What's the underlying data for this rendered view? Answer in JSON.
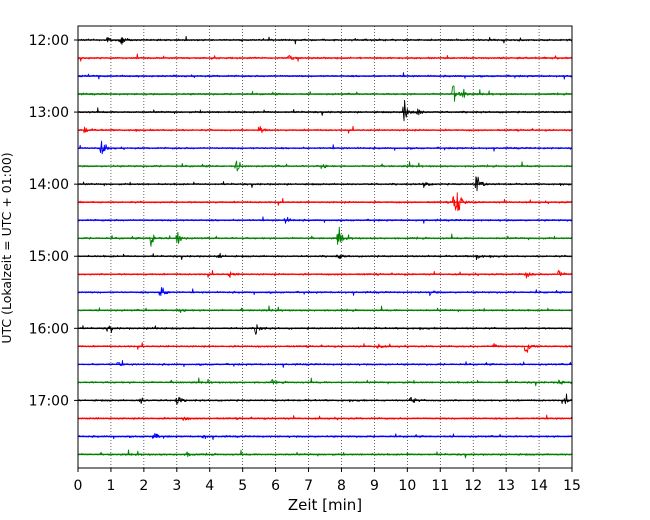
{
  "chart_data": {
    "type": "line",
    "title": "",
    "xlabel": "Zeit  [min]",
    "ylabel": "UTC (Lokalzeit = UTC + 01:00)",
    "xlim": [
      0,
      15
    ],
    "x_ticks": [
      "0",
      "1",
      "2",
      "3",
      "4",
      "5",
      "6",
      "7",
      "8",
      "9",
      "10",
      "11",
      "12",
      "13",
      "14",
      "15"
    ],
    "y_tick_labels": [
      "12:00",
      "13:00",
      "14:00",
      "15:00",
      "16:00",
      "17:00"
    ],
    "y_tick_rows": [
      0,
      4,
      8,
      12,
      16,
      20
    ],
    "grid": "vertical dotted",
    "trace_colors": [
      "#000000",
      "#ff0000",
      "#0000ff",
      "#008000"
    ],
    "rows": [
      {
        "time": "12:00",
        "color": "#000000",
        "events": [
          {
            "min": 1.3,
            "amp": 0.35
          },
          {
            "min": 0.9,
            "amp": 0.25
          }
        ]
      },
      {
        "time": "12:15",
        "color": "#ff0000",
        "events": [
          {
            "min": 6.4,
            "amp": 0.15
          }
        ]
      },
      {
        "time": "12:30",
        "color": "#0000ff",
        "events": [
          {
            "min": 15.0,
            "amp": 0.25
          }
        ]
      },
      {
        "time": "12:45",
        "color": "#008000",
        "events": [
          {
            "min": 11.4,
            "amp": 0.75
          },
          {
            "min": 11.7,
            "amp": 0.3
          }
        ]
      },
      {
        "time": "13:00",
        "color": "#000000",
        "events": [
          {
            "min": 9.9,
            "amp": 0.85
          },
          {
            "min": 10.3,
            "amp": 0.25
          }
        ]
      },
      {
        "time": "13:15",
        "color": "#ff0000",
        "events": [
          {
            "min": 5.5,
            "amp": 0.3
          },
          {
            "min": 0.2,
            "amp": 0.2
          }
        ]
      },
      {
        "time": "13:30",
        "color": "#0000ff",
        "events": [
          {
            "min": 0.7,
            "amp": 0.5
          }
        ]
      },
      {
        "time": "13:45",
        "color": "#008000",
        "events": [
          {
            "min": 4.8,
            "amp": 0.4
          },
          {
            "min": 7.4,
            "amp": 0.2
          }
        ]
      },
      {
        "time": "14:00",
        "color": "#000000",
        "events": [
          {
            "min": 12.1,
            "amp": 0.75
          },
          {
            "min": 10.5,
            "amp": 0.2
          }
        ]
      },
      {
        "time": "14:15",
        "color": "#ff0000",
        "events": [
          {
            "min": 11.5,
            "amp": 0.95
          },
          {
            "min": 11.4,
            "amp": 0.5
          }
        ]
      },
      {
        "time": "14:30",
        "color": "#0000ff",
        "events": [
          {
            "min": 6.3,
            "amp": 0.25
          }
        ]
      },
      {
        "time": "14:45",
        "color": "#008000",
        "events": [
          {
            "min": 2.2,
            "amp": 0.6
          },
          {
            "min": 3.0,
            "amp": 0.55
          },
          {
            "min": 7.9,
            "amp": 0.6
          }
        ]
      },
      {
        "time": "15:00",
        "color": "#000000",
        "events": [
          {
            "min": 4.3,
            "amp": 0.2
          },
          {
            "min": 7.9,
            "amp": 0.2
          },
          {
            "min": 12.1,
            "amp": 0.2
          }
        ]
      },
      {
        "time": "15:15",
        "color": "#ff0000",
        "events": [
          {
            "min": 4.6,
            "amp": 0.2
          },
          {
            "min": 13.6,
            "amp": 0.25
          },
          {
            "min": 14.6,
            "amp": 0.3
          }
        ]
      },
      {
        "time": "15:30",
        "color": "#0000ff",
        "events": [
          {
            "min": 2.5,
            "amp": 0.55
          },
          {
            "min": 10.7,
            "amp": 0.2
          }
        ]
      },
      {
        "time": "15:45",
        "color": "#008000",
        "events": [
          {
            "min": 3.1,
            "amp": 0.15
          }
        ]
      },
      {
        "time": "16:00",
        "color": "#000000",
        "events": [
          {
            "min": 5.4,
            "amp": 0.35
          },
          {
            "min": 0.9,
            "amp": 0.2
          },
          {
            "min": 2.3,
            "amp": 0.2
          }
        ]
      },
      {
        "time": "16:15",
        "color": "#ff0000",
        "events": [
          {
            "min": 13.6,
            "amp": 0.75
          },
          {
            "min": 12.6,
            "amp": 0.2
          },
          {
            "min": 9.1,
            "amp": 0.2
          }
        ]
      },
      {
        "time": "16:30",
        "color": "#0000ff",
        "events": [
          {
            "min": 1.2,
            "amp": 0.15
          }
        ]
      },
      {
        "time": "16:45",
        "color": "#008000",
        "events": [
          {
            "min": 5.9,
            "amp": 0.15
          },
          {
            "min": 14.6,
            "amp": 0.2
          }
        ]
      },
      {
        "time": "17:00",
        "color": "#000000",
        "events": [
          {
            "min": 3.0,
            "amp": 0.35
          },
          {
            "min": 10.1,
            "amp": 0.35
          },
          {
            "min": 1.9,
            "amp": 0.2
          },
          {
            "min": 14.8,
            "amp": 0.25
          }
        ]
      },
      {
        "time": "17:15",
        "color": "#ff0000",
        "events": [
          {
            "min": 3.2,
            "amp": 0.15
          }
        ]
      },
      {
        "time": "17:30",
        "color": "#0000ff",
        "events": [
          {
            "min": 2.3,
            "amp": 0.25
          },
          {
            "min": 3.8,
            "amp": 0.15
          }
        ]
      },
      {
        "time": "17:45",
        "color": "#008000",
        "events": [
          {
            "min": 3.3,
            "amp": 0.15
          }
        ]
      }
    ]
  }
}
